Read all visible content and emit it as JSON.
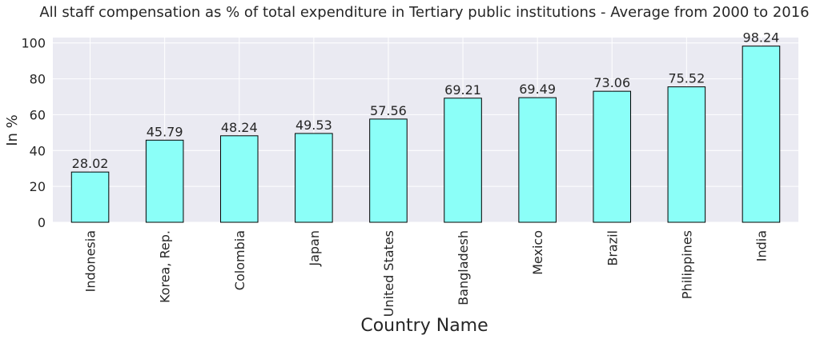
{
  "chart_data": {
    "type": "bar",
    "title": "All staff compensation as % of total expenditure in Tertiary public institutions - Average from 2000 to 2016",
    "xlabel": "Country Name",
    "ylabel": "In %",
    "categories": [
      "Indonesia",
      "Korea, Rep.",
      "Colombia",
      "Japan",
      "United States",
      "Bangladesh",
      "Mexico",
      "Brazil",
      "Philippines",
      "India"
    ],
    "values": [
      28.02,
      45.79,
      48.24,
      49.53,
      57.56,
      69.21,
      69.49,
      73.06,
      75.52,
      98.24
    ],
    "data_labels": [
      "28.02",
      "45.79",
      "48.24",
      "49.53",
      "57.56",
      "69.21",
      "69.49",
      "73.06",
      "75.52",
      "98.24"
    ],
    "ylim": [
      0,
      103
    ],
    "yticks": [
      0,
      20,
      40,
      60,
      80,
      100
    ],
    "grid": true,
    "colors": {
      "bar": "#8bfff8",
      "bar_edge": "#000000",
      "plot_bg": "#eaeaf2",
      "grid": "#ffffff"
    }
  }
}
